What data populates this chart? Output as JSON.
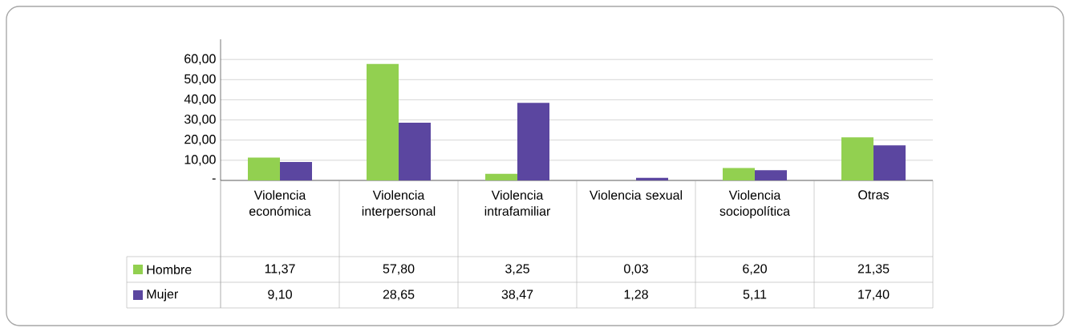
{
  "chart_data": {
    "type": "bar",
    "categories": [
      "Violencia económica",
      "Violencia interpersonal",
      "Violencia intrafamiliar",
      "Violencia sexual",
      "Violencia sociopolítica",
      "Otras"
    ],
    "series": [
      {
        "name": "Hombre",
        "color": "#92d050",
        "values": [
          11.37,
          57.8,
          3.25,
          0.03,
          6.2,
          21.35
        ],
        "value_labels": [
          "11,37",
          "57,80",
          "3,25",
          "0,03",
          "6,20",
          "21,35"
        ]
      },
      {
        "name": "Mujer",
        "color": "#5b46a0",
        "values": [
          9.1,
          28.65,
          38.47,
          1.28,
          5.11,
          17.4
        ],
        "value_labels": [
          "9,10",
          "28,65",
          "38,47",
          "1,28",
          "5,11",
          "17,40"
        ]
      }
    ],
    "ylim": [
      0,
      70
    ],
    "yticks": [
      {
        "value": 0,
        "label": "-"
      },
      {
        "value": 10,
        "label": "10,00"
      },
      {
        "value": 20,
        "label": "20,00"
      },
      {
        "value": 30,
        "label": "30,00"
      },
      {
        "value": 40,
        "label": "40,00"
      },
      {
        "value": 50,
        "label": "50,00"
      },
      {
        "value": 60,
        "label": "60,00"
      }
    ],
    "grid": "y",
    "legend": "bottom left"
  }
}
